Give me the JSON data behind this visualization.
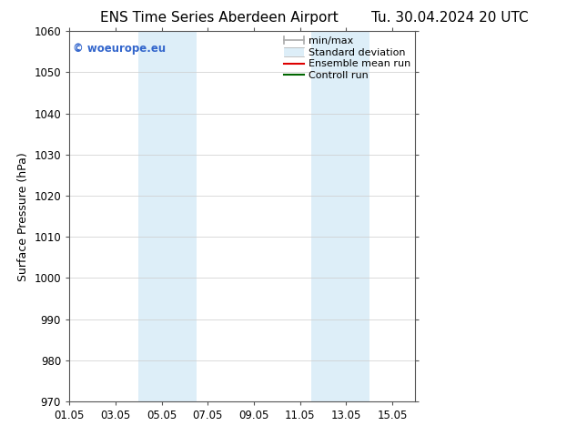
{
  "title_left": "ENS Time Series Aberdeen Airport",
  "title_right": "Tu. 30.04.2024 20 UTC",
  "ylabel": "Surface Pressure (hPa)",
  "ylim": [
    970,
    1060
  ],
  "yticks": [
    970,
    980,
    990,
    1000,
    1010,
    1020,
    1030,
    1040,
    1050,
    1060
  ],
  "xlim_start": 0.0,
  "xlim_end": 15.0,
  "xtick_positions": [
    0,
    2,
    4,
    6,
    8,
    10,
    12,
    14
  ],
  "xtick_labels": [
    "01.05",
    "03.05",
    "05.05",
    "07.05",
    "09.05",
    "11.05",
    "13.05",
    "15.05"
  ],
  "shaded_bands": [
    {
      "xmin": 3.0,
      "xmax": 5.5
    },
    {
      "xmin": 10.5,
      "xmax": 13.0
    }
  ],
  "shade_color": "#ddeef8",
  "background_color": "#ffffff",
  "watermark_text": "© woeurope.eu",
  "watermark_color": "#3366cc",
  "legend_entries": [
    {
      "label": "min/max",
      "color": "#aaaaaa",
      "lw": 1.2
    },
    {
      "label": "Standard deviation",
      "color": "#cce0f0",
      "lw": 7
    },
    {
      "label": "Ensemble mean run",
      "color": "#dd0000",
      "lw": 1.5
    },
    {
      "label": "Controll run",
      "color": "#006600",
      "lw": 1.5
    }
  ],
  "title_fontsize": 11,
  "ylabel_fontsize": 9,
  "tick_fontsize": 8.5,
  "legend_fontsize": 8,
  "watermark_fontsize": 8.5
}
